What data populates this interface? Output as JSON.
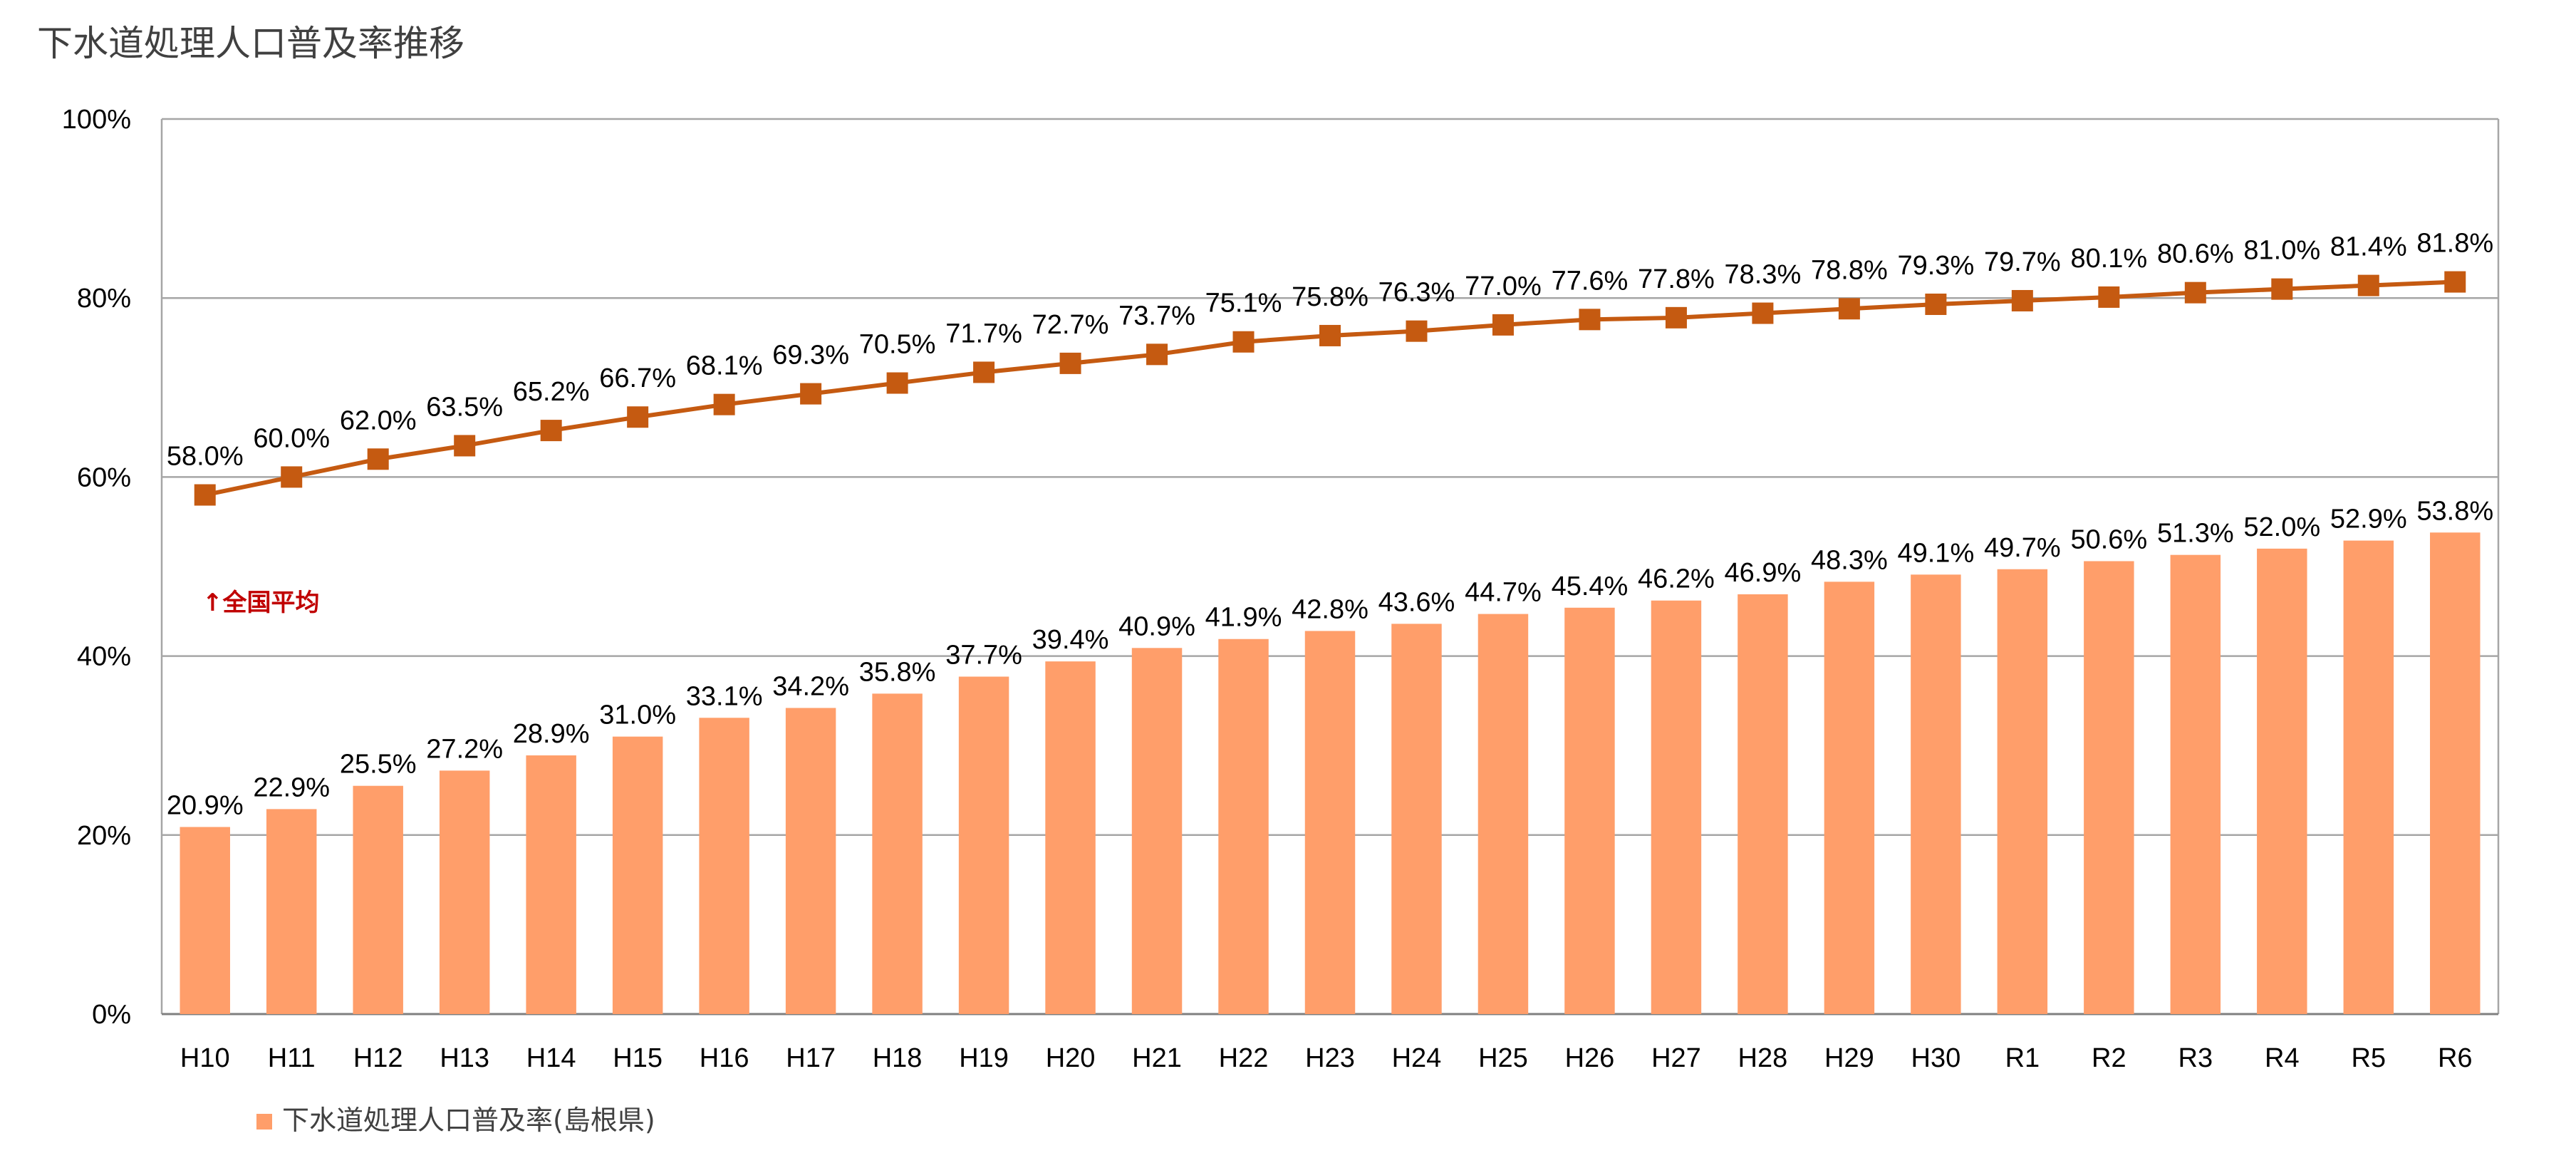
{
  "title": "下水道処理人口普及率推移",
  "colors": {
    "bar": "#ff9e6a",
    "line": "#c55a11",
    "grid": "#a6a6a6",
    "annotation": "#c00000"
  },
  "chart_data": {
    "type": "bar",
    "title": "下水道処理人口普及率推移",
    "xlabel": "",
    "ylabel": "",
    "ylim": [
      0,
      100
    ],
    "yticks": [
      "0%",
      "20%",
      "40%",
      "60%",
      "80%",
      "100%"
    ],
    "grid": true,
    "legend_position": "bottom-left",
    "categories": [
      "H10",
      "H11",
      "H12",
      "H13",
      "H14",
      "H15",
      "H16",
      "H17",
      "H18",
      "H19",
      "H20",
      "H21",
      "H22",
      "H23",
      "H24",
      "H25",
      "H26",
      "H27",
      "H28",
      "H29",
      "H30",
      "R1",
      "R2",
      "R3",
      "R4",
      "R5",
      "R6"
    ],
    "series": [
      {
        "name": "下水道処理人口普及率(島根県)",
        "type": "bar",
        "values": [
          20.9,
          22.9,
          25.5,
          27.2,
          28.9,
          31.0,
          33.1,
          34.2,
          35.8,
          37.7,
          39.4,
          40.9,
          41.9,
          42.8,
          43.6,
          44.7,
          45.4,
          46.2,
          46.9,
          48.3,
          49.1,
          49.7,
          50.6,
          51.3,
          52.0,
          52.9,
          53.8
        ]
      },
      {
        "type": "line",
        "values": [
          58.0,
          60.0,
          62.0,
          63.5,
          65.2,
          66.7,
          68.1,
          69.3,
          70.5,
          71.7,
          72.7,
          73.7,
          75.1,
          75.8,
          76.3,
          77.0,
          77.6,
          77.8,
          78.3,
          78.8,
          79.3,
          79.7,
          80.1,
          80.6,
          81.0,
          81.4,
          81.8
        ]
      }
    ],
    "annotations": [
      {
        "text": "↑全国平均"
      }
    ]
  }
}
